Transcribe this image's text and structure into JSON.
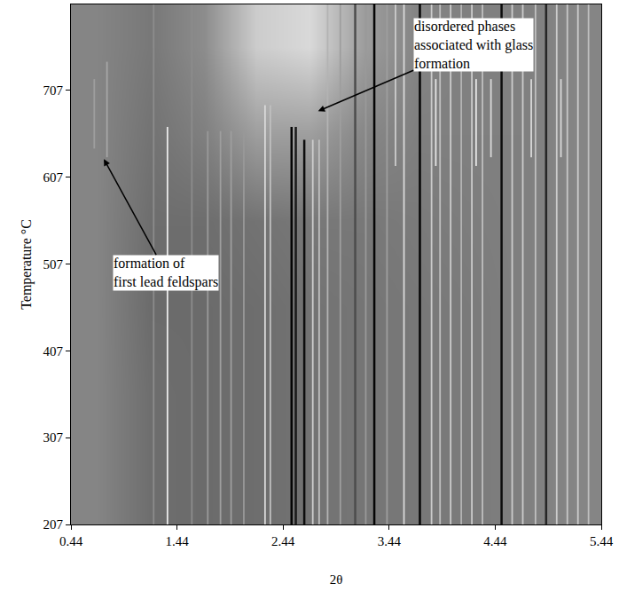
{
  "chart_data": {
    "type": "heatmap",
    "x_label": "2θ",
    "y_label": "Temperature °C",
    "xlim": [
      0.44,
      5.44
    ],
    "ylim": [
      207,
      806
    ],
    "xticks": [
      0.44,
      1.44,
      2.44,
      3.44,
      4.44,
      5.44
    ],
    "yticks": [
      207,
      307,
      407,
      507,
      607,
      707
    ],
    "grid": false,
    "zlim": [
      0,
      1
    ],
    "cells": {
      "x": [
        0.69,
        1.19,
        1.69,
        2.19,
        2.69,
        3.19,
        3.69,
        4.19,
        4.69,
        5.19
      ],
      "y": [
        257,
        357,
        457,
        557,
        657,
        757
      ],
      "z": [
        [
          0.52,
          0.43,
          0.42,
          0.43,
          0.45,
          0.46,
          0.47,
          0.48,
          0.5,
          0.52
        ],
        [
          0.52,
          0.43,
          0.42,
          0.43,
          0.45,
          0.46,
          0.47,
          0.48,
          0.5,
          0.52
        ],
        [
          0.52,
          0.42,
          0.42,
          0.43,
          0.45,
          0.46,
          0.47,
          0.48,
          0.5,
          0.52
        ],
        [
          0.52,
          0.43,
          0.43,
          0.45,
          0.47,
          0.47,
          0.48,
          0.49,
          0.5,
          0.52
        ],
        [
          0.52,
          0.45,
          0.5,
          0.62,
          0.62,
          0.53,
          0.5,
          0.5,
          0.5,
          0.52
        ],
        [
          0.52,
          0.47,
          0.55,
          0.8,
          0.85,
          0.62,
          0.52,
          0.5,
          0.5,
          0.52
        ]
      ]
    },
    "lines": [
      {
        "x": 0.66,
        "from": 640,
        "to": 720,
        "shade": 0.62
      },
      {
        "x": 0.78,
        "from": 630,
        "to": 740,
        "shade": 0.65
      },
      {
        "x": 1.22,
        "from": 207,
        "to": 806,
        "shade": 0.55
      },
      {
        "x": 1.35,
        "from": 207,
        "to": 665,
        "shade": 0.92
      },
      {
        "x": 1.58,
        "from": 207,
        "to": 806,
        "shade": 0.55
      },
      {
        "x": 1.73,
        "from": 207,
        "to": 660,
        "shade": 0.6
      },
      {
        "x": 1.85,
        "from": 207,
        "to": 660,
        "shade": 0.62
      },
      {
        "x": 1.95,
        "from": 207,
        "to": 660,
        "shade": 0.62
      },
      {
        "x": 2.07,
        "from": 207,
        "to": 660,
        "shade": 0.6
      },
      {
        "x": 2.27,
        "from": 207,
        "to": 690,
        "shade": 0.85
      },
      {
        "x": 2.32,
        "from": 207,
        "to": 690,
        "shade": 0.75
      },
      {
        "x": 2.52,
        "from": 207,
        "to": 665,
        "shade": 0.02
      },
      {
        "x": 2.56,
        "from": 207,
        "to": 665,
        "shade": 0.1
      },
      {
        "x": 2.64,
        "from": 207,
        "to": 650,
        "shade": 0.05
      },
      {
        "x": 2.72,
        "from": 207,
        "to": 650,
        "shade": 0.8
      },
      {
        "x": 2.78,
        "from": 207,
        "to": 650,
        "shade": 0.75
      },
      {
        "x": 2.86,
        "from": 207,
        "to": 806,
        "shade": 0.7
      },
      {
        "x": 2.98,
        "from": 207,
        "to": 806,
        "shade": 0.62
      },
      {
        "x": 3.12,
        "from": 207,
        "to": 806,
        "shade": 0.3
      },
      {
        "x": 3.22,
        "from": 207,
        "to": 806,
        "shade": 0.6
      },
      {
        "x": 3.3,
        "from": 207,
        "to": 806,
        "shade": 0.02
      },
      {
        "x": 3.42,
        "from": 207,
        "to": 806,
        "shade": 0.62
      },
      {
        "x": 3.5,
        "from": 620,
        "to": 806,
        "shade": 0.8
      },
      {
        "x": 3.58,
        "from": 207,
        "to": 806,
        "shade": 0.85
      },
      {
        "x": 3.73,
        "from": 207,
        "to": 806,
        "shade": 0.02
      },
      {
        "x": 3.84,
        "from": 207,
        "to": 806,
        "shade": 0.8
      },
      {
        "x": 3.88,
        "from": 620,
        "to": 720,
        "shade": 0.9
      },
      {
        "x": 3.92,
        "from": 207,
        "to": 806,
        "shade": 0.75
      },
      {
        "x": 4.02,
        "from": 207,
        "to": 806,
        "shade": 0.8
      },
      {
        "x": 4.12,
        "from": 207,
        "to": 806,
        "shade": 0.7
      },
      {
        "x": 4.22,
        "from": 207,
        "to": 806,
        "shade": 0.8
      },
      {
        "x": 4.26,
        "from": 620,
        "to": 720,
        "shade": 0.9
      },
      {
        "x": 4.32,
        "from": 207,
        "to": 806,
        "shade": 0.75
      },
      {
        "x": 4.4,
        "from": 630,
        "to": 720,
        "shade": 0.85
      },
      {
        "x": 4.5,
        "from": 207,
        "to": 806,
        "shade": 0.05
      },
      {
        "x": 4.6,
        "from": 207,
        "to": 806,
        "shade": 0.8
      },
      {
        "x": 4.7,
        "from": 207,
        "to": 806,
        "shade": 0.8
      },
      {
        "x": 4.78,
        "from": 630,
        "to": 720,
        "shade": 0.85
      },
      {
        "x": 4.82,
        "from": 207,
        "to": 806,
        "shade": 0.75
      },
      {
        "x": 4.92,
        "from": 207,
        "to": 806,
        "shade": 0.15
      },
      {
        "x": 5.02,
        "from": 207,
        "to": 806,
        "shade": 0.8
      },
      {
        "x": 5.06,
        "from": 630,
        "to": 720,
        "shade": 0.85
      },
      {
        "x": 5.12,
        "from": 207,
        "to": 806,
        "shade": 0.78
      },
      {
        "x": 5.22,
        "from": 207,
        "to": 806,
        "shade": 0.8
      },
      {
        "x": 5.32,
        "from": 207,
        "to": 806,
        "shade": 0.75
      }
    ],
    "annotations": [
      {
        "text": [
          "disordered phases",
          "associated with glass",
          "formation"
        ],
        "x": 2.77,
        "y": 683
      },
      {
        "text": [
          "formation of",
          "first lead feldspars"
        ],
        "x": 0.75,
        "y": 628
      }
    ]
  }
}
